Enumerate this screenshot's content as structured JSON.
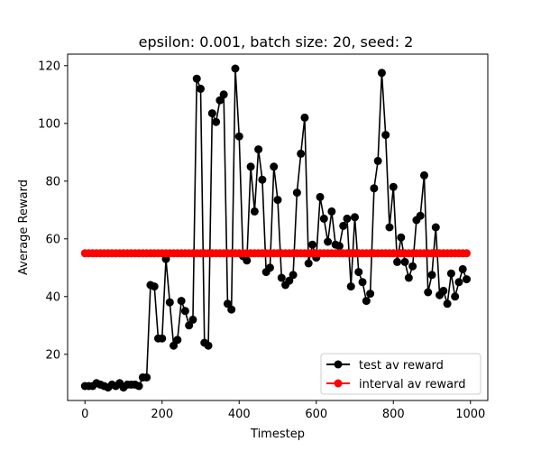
{
  "chart_data": {
    "type": "line",
    "title": "epsilon: 0.001, batch size: 20, seed: 2",
    "xlabel": "Timestep",
    "ylabel": "Average Reward",
    "xlim": [
      -45,
      1045
    ],
    "ylim": [
      4,
      124
    ],
    "xticks": [
      0,
      200,
      400,
      600,
      800,
      1000
    ],
    "yticks": [
      20,
      40,
      60,
      80,
      100,
      120
    ],
    "grid": false,
    "legend_position": "lower-right",
    "x": [
      0,
      10,
      20,
      30,
      40,
      50,
      60,
      70,
      80,
      90,
      100,
      110,
      120,
      130,
      140,
      150,
      160,
      170,
      180,
      190,
      200,
      210,
      220,
      230,
      240,
      250,
      260,
      270,
      280,
      290,
      300,
      310,
      320,
      330,
      340,
      350,
      360,
      370,
      380,
      390,
      400,
      410,
      420,
      430,
      440,
      450,
      460,
      470,
      480,
      490,
      500,
      510,
      520,
      530,
      540,
      550,
      560,
      570,
      580,
      590,
      600,
      610,
      620,
      630,
      640,
      650,
      660,
      670,
      680,
      690,
      700,
      710,
      720,
      730,
      740,
      750,
      760,
      770,
      780,
      790,
      800,
      810,
      820,
      830,
      840,
      850,
      860,
      870,
      880,
      890,
      900,
      910,
      920,
      930,
      940,
      950,
      960,
      970,
      980,
      990
    ],
    "series": [
      {
        "name": "test av reward",
        "color": "#000000",
        "values": [
          9,
          9,
          9,
          10,
          9.5,
          9,
          8.5,
          9.5,
          9,
          10,
          8.5,
          9.5,
          9.5,
          9.5,
          9,
          12,
          12,
          44,
          43.5,
          25.5,
          25.5,
          53,
          38,
          23,
          25,
          38.5,
          35,
          30,
          32,
          115.5,
          112,
          24,
          23,
          103.5,
          100.5,
          108,
          110,
          37.5,
          35.5,
          119,
          95.5,
          54,
          52.5,
          85,
          69.5,
          91,
          80.5,
          48.5,
          50,
          85,
          73.5,
          46.5,
          44,
          45.5,
          47.5,
          76,
          89.5,
          102,
          51.5,
          58,
          53.5,
          74.5,
          67,
          59,
          69.5,
          58,
          57.5,
          64.5,
          67,
          43.5,
          67.5,
          48.5,
          45,
          38.5,
          41,
          77.5,
          87,
          117.5,
          96,
          64,
          78,
          52,
          60.5,
          52,
          46.5,
          50.5,
          66.5,
          68,
          82,
          41.5,
          47.5,
          64,
          40.5,
          42,
          37.5,
          48,
          40,
          45,
          49.5,
          46
        ]
      },
      {
        "name": "interval av reward",
        "color": "#ff0000",
        "values": [
          55,
          55,
          55,
          55,
          55,
          55,
          55,
          55,
          55,
          55,
          55,
          55,
          55,
          55,
          55,
          55,
          55,
          55,
          55,
          55,
          55,
          55,
          55,
          55,
          55,
          55,
          55,
          55,
          55,
          55,
          55,
          55,
          55,
          55,
          55,
          55,
          55,
          55,
          55,
          55,
          55,
          55,
          55,
          55,
          55,
          55,
          55,
          55,
          55,
          55,
          55,
          55,
          55,
          55,
          55,
          55,
          55,
          55,
          55,
          55,
          55,
          55,
          55,
          55,
          55,
          55,
          55,
          55,
          55,
          55,
          55,
          55,
          55,
          55,
          55,
          55,
          55,
          55,
          55,
          55,
          55,
          55,
          55,
          55,
          55,
          55,
          55,
          55,
          55,
          55,
          55,
          55,
          55,
          55,
          55,
          55,
          55,
          55,
          55,
          55
        ]
      }
    ]
  }
}
